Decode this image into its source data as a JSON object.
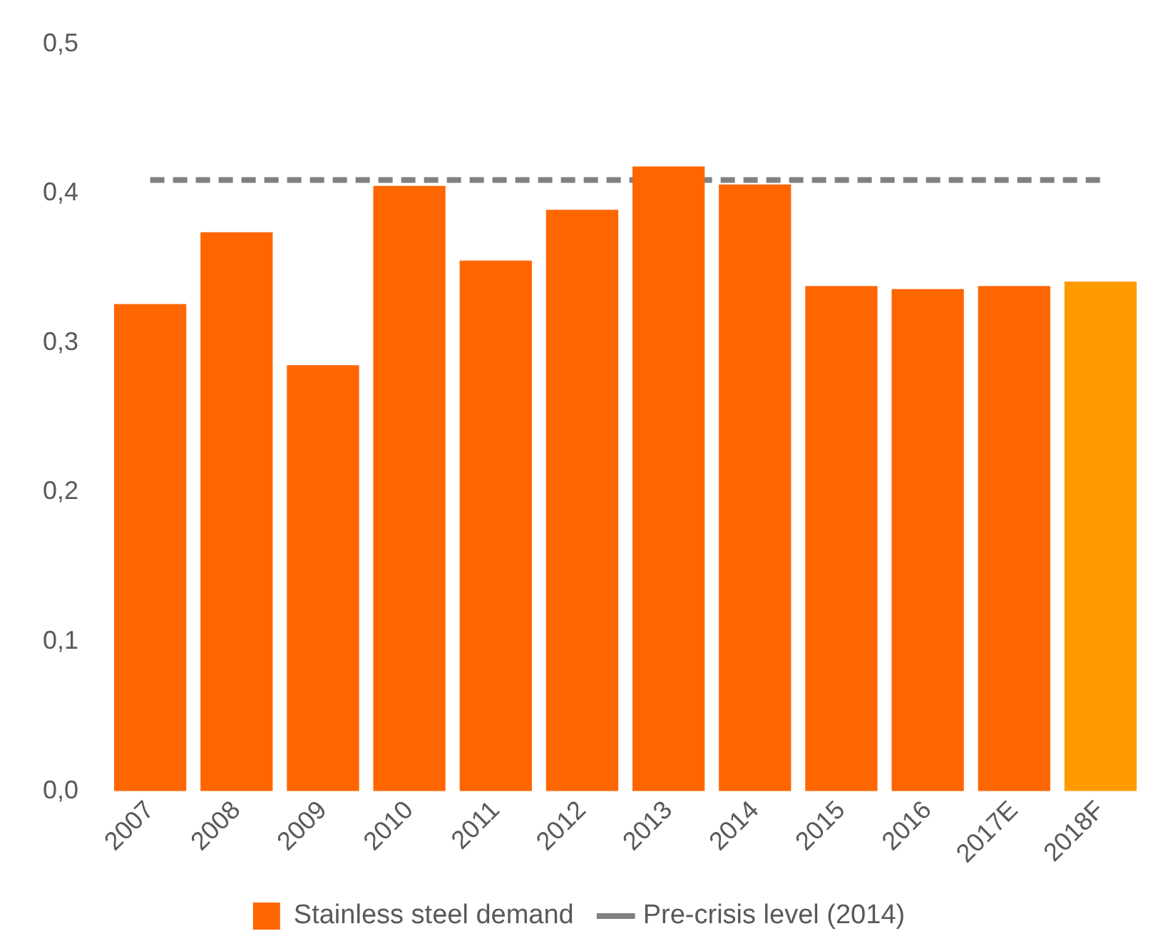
{
  "chart_data": {
    "type": "bar",
    "categories": [
      "2007",
      "2008",
      "2009",
      "2010",
      "2011",
      "2012",
      "2013",
      "2014",
      "2015",
      "2016",
      "2017E",
      "2018F"
    ],
    "series": [
      {
        "name": "Stainless steel demand",
        "colors": [
          "#ff6600",
          "#ff6600",
          "#ff6600",
          "#ff6600",
          "#ff6600",
          "#ff6600",
          "#ff6600",
          "#ff6600",
          "#ff6600",
          "#ff6600",
          "#ff6600",
          "#ff9900"
        ],
        "values": [
          0.326,
          0.374,
          0.285,
          0.405,
          0.355,
          0.389,
          0.418,
          0.406,
          0.338,
          0.336,
          0.338,
          0.341
        ]
      }
    ],
    "ylim": [
      0,
      0.5
    ],
    "yticks": [
      {
        "value": 0,
        "label": "0,0"
      },
      {
        "value": 0.1,
        "label": "0,1"
      },
      {
        "value": 0.2,
        "label": "0,2"
      },
      {
        "value": 0.3,
        "label": "0,3"
      },
      {
        "value": 0.4,
        "label": "0,4"
      },
      {
        "value": 0.5,
        "label": "0,5"
      }
    ],
    "ref_lines": [
      {
        "axis": "y",
        "value": 0.409,
        "label": "Pre-crisis level (2014)",
        "color": "#808080",
        "line_style": "dashed"
      }
    ],
    "grid": false,
    "legend": "bottom"
  }
}
